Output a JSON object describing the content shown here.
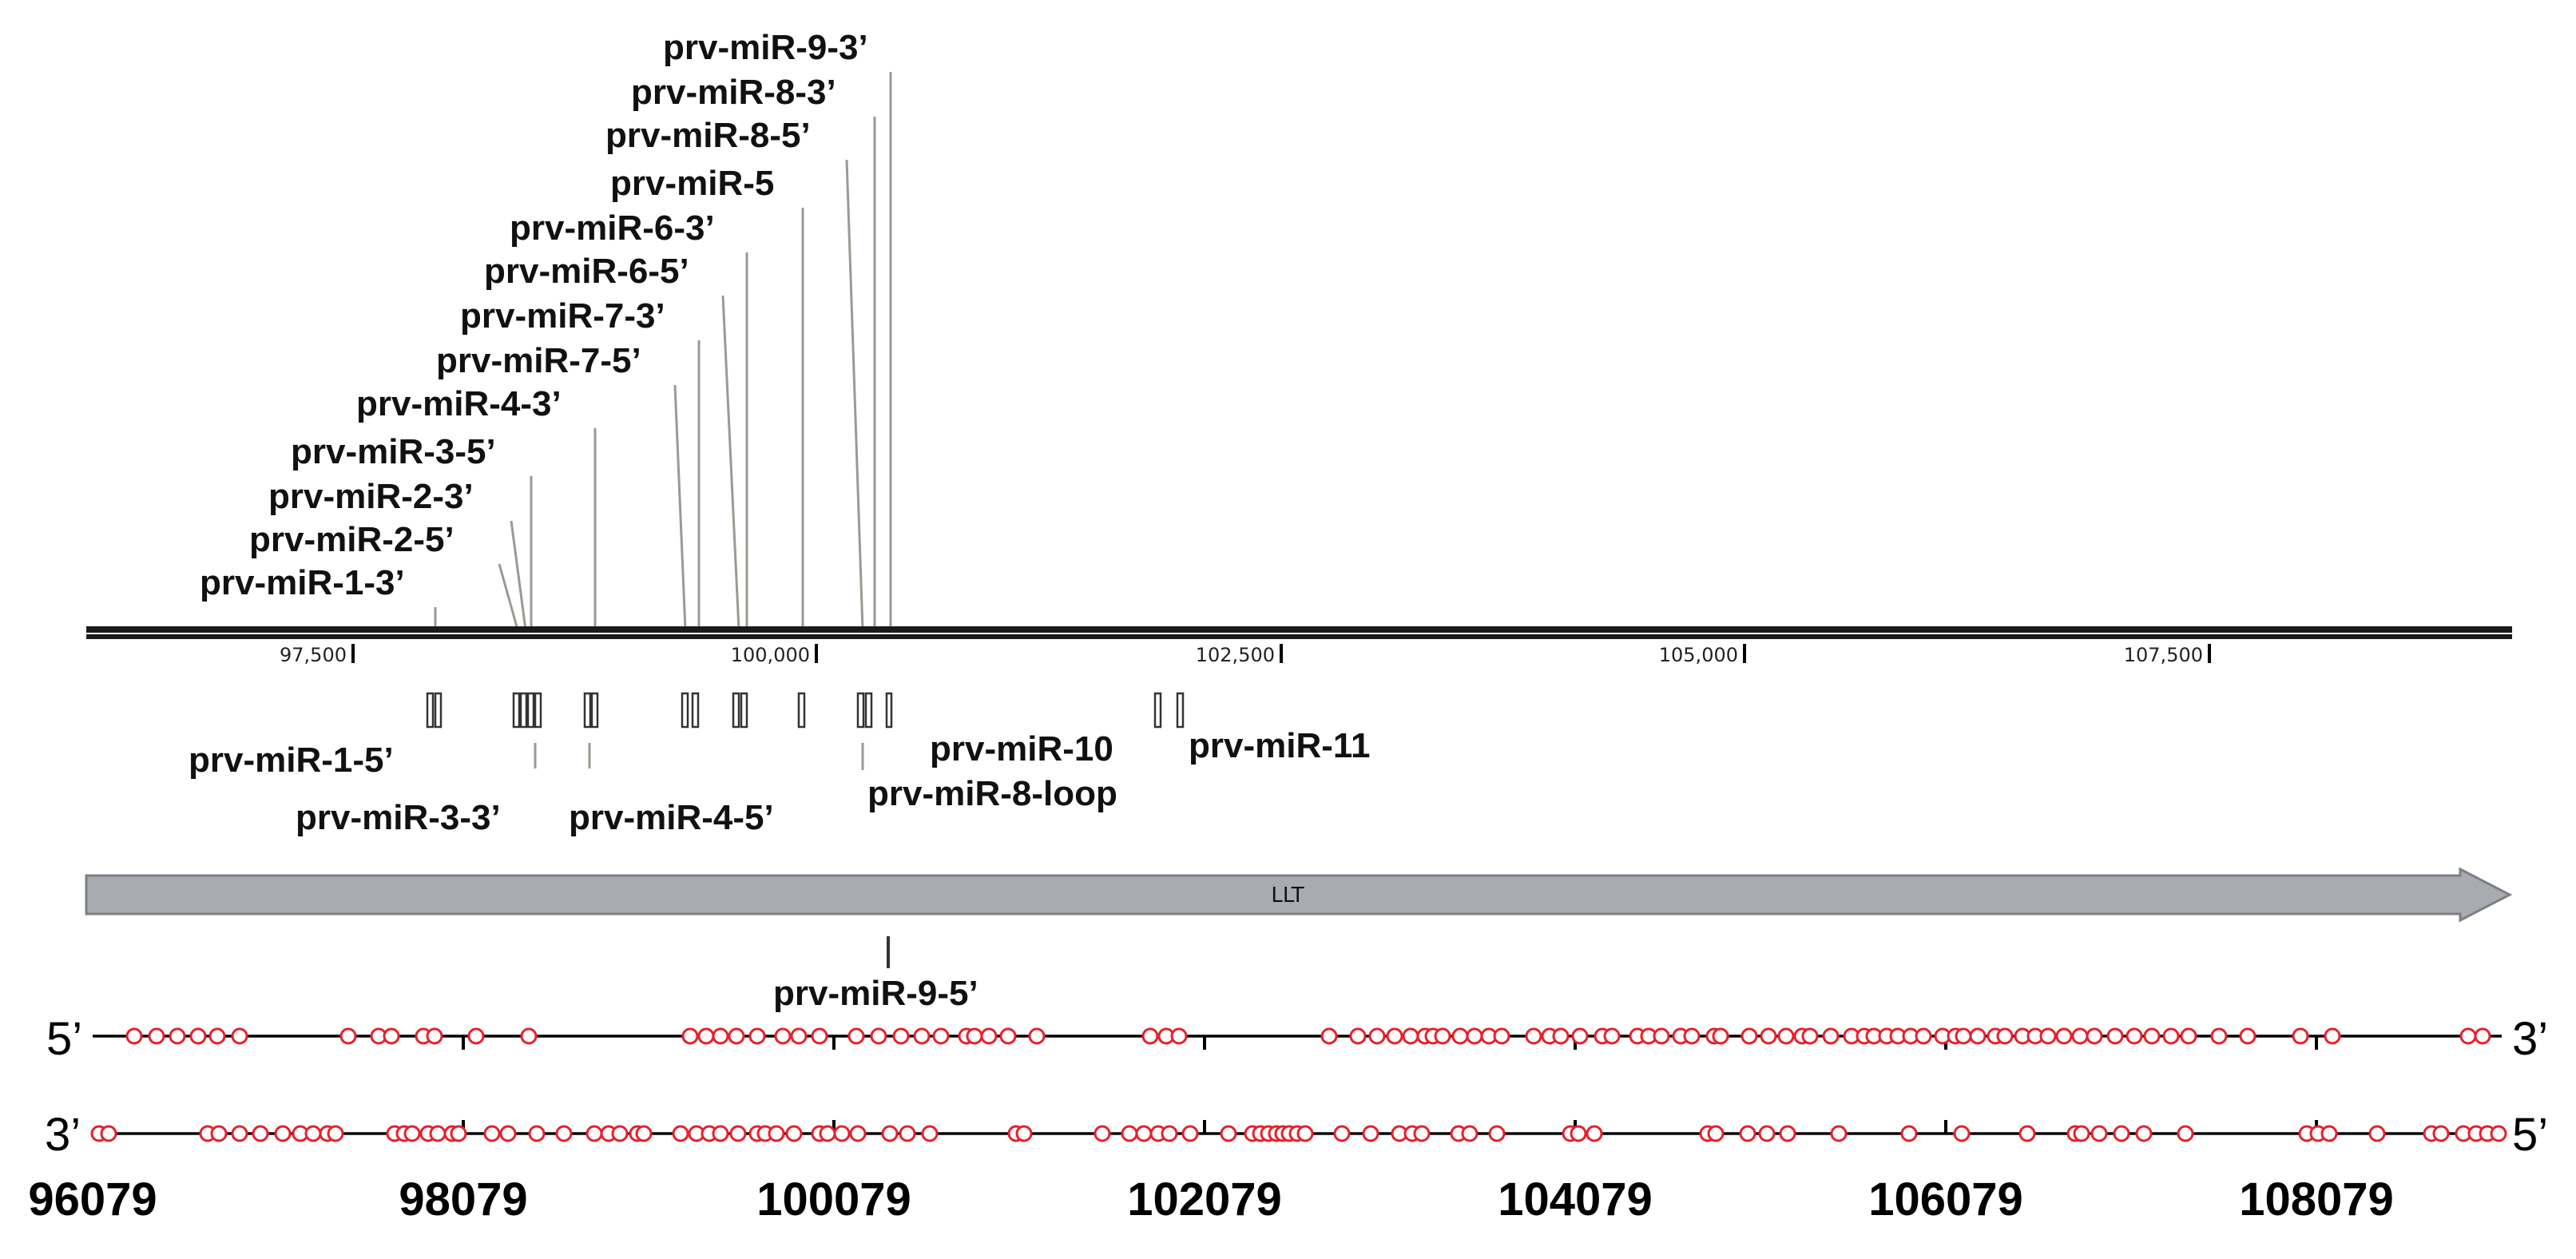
{
  "figure": {
    "axis_ticks": [
      "97,500",
      "100,000",
      "102,500",
      "105,000",
      "107,500"
    ],
    "gene_label": "LLT",
    "coordinate_labels": [
      "96079",
      "98079",
      "100079",
      "102079",
      "104079",
      "106079",
      "108079"
    ],
    "strand_top": {
      "left": "5’",
      "right": "3’"
    },
    "strand_bottom": {
      "left": "3’",
      "right": "5’"
    },
    "top_labels": [
      "prv-miR-9-3’",
      "prv-miR-8-3’",
      "prv-miR-8-5’",
      "prv-miR-5",
      "prv-miR-6-3’",
      "prv-miR-6-5’",
      "prv-miR-7-3’",
      "prv-miR-7-5’",
      "prv-miR-4-3’",
      "prv-miR-3-5’",
      "prv-miR-2-3’",
      "prv-miR-2-5’",
      "prv-miR-1-3’"
    ],
    "bottom_labels": [
      "prv-miR-1-5’",
      "prv-miR-3-3’",
      "prv-miR-4-5’",
      "prv-miR-10",
      "prv-miR-8-loop",
      "prv-miR-11",
      "prv-miR-9-5’"
    ]
  }
}
